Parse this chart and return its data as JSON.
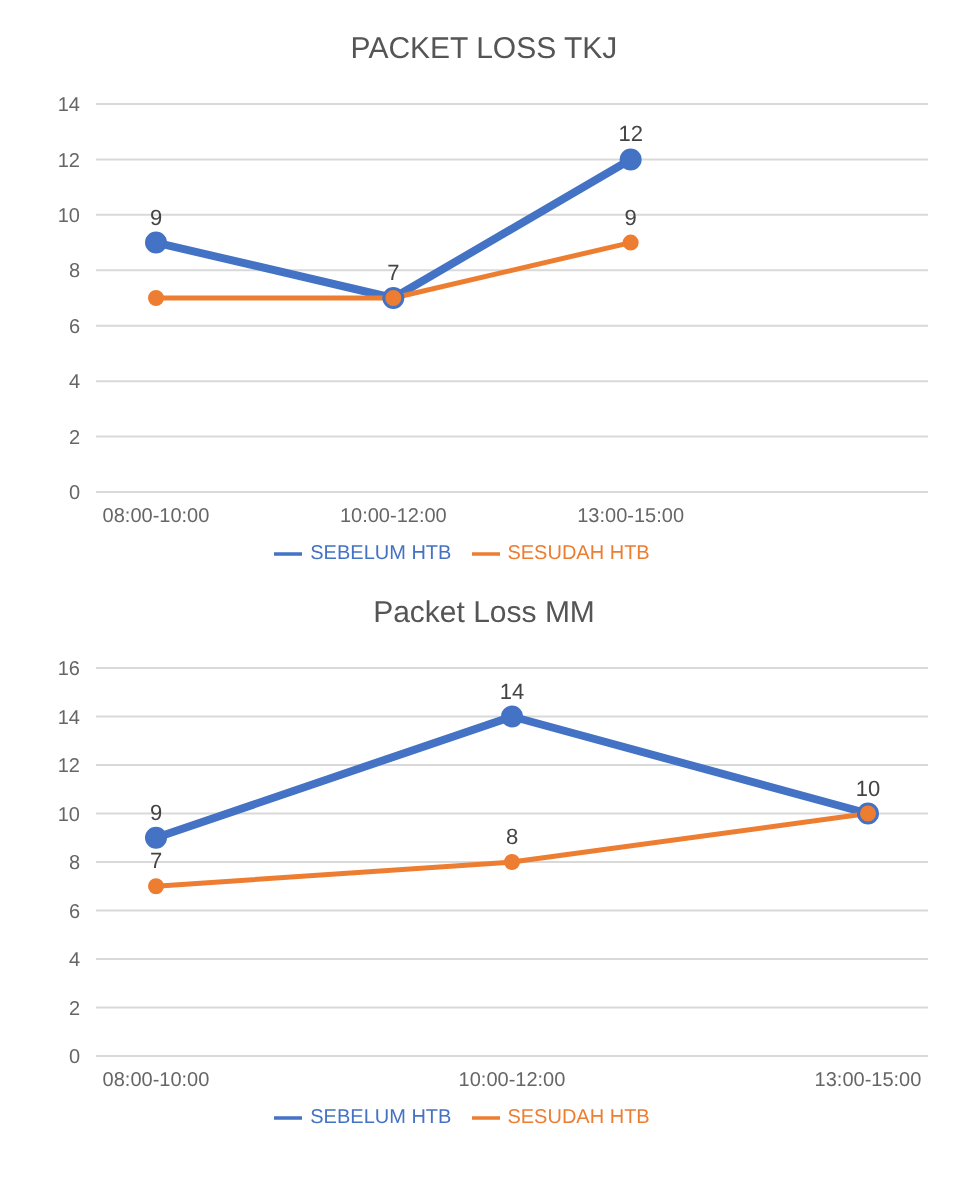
{
  "chart_data": [
    {
      "type": "line",
      "title": "PACKET LOSS TKJ",
      "categories": [
        "08:00-10:00",
        "10:00-12:00",
        "13:00-15:00",
        null
      ],
      "series": [
        {
          "name": "SEBELUM HTB",
          "color": "#4472c4",
          "values": [
            9,
            7,
            12,
            null
          ],
          "value_labels": [
            "9",
            null,
            "12",
            null
          ]
        },
        {
          "name": "SESUDAH HTB",
          "color": "#ed7d31",
          "values": [
            7,
            7,
            9,
            null
          ],
          "value_labels": [
            null,
            "7",
            "9",
            null
          ]
        }
      ],
      "ylim": [
        0,
        14
      ],
      "yticks": [
        0,
        2,
        4,
        6,
        8,
        10,
        12,
        14
      ],
      "grid": "y",
      "legend": "bottom",
      "marker": "circle"
    },
    {
      "type": "line",
      "title": "Packet Loss MM",
      "categories": [
        "08:00-10:00",
        "10:00-12:00",
        "13:00-15:00"
      ],
      "series": [
        {
          "name": "SEBELUM HTB",
          "color": "#4472c4",
          "values": [
            9,
            14,
            10
          ],
          "value_labels": [
            "9",
            "14",
            "10"
          ]
        },
        {
          "name": "SESUDAH HTB",
          "color": "#ed7d31",
          "values": [
            7,
            8,
            10
          ],
          "value_labels": [
            "7",
            "8",
            null
          ]
        }
      ],
      "ylim": [
        0,
        16
      ],
      "yticks": [
        0,
        2,
        4,
        6,
        8,
        10,
        12,
        14,
        16
      ],
      "grid": "y",
      "legend": "bottom",
      "marker": "circle"
    }
  ]
}
